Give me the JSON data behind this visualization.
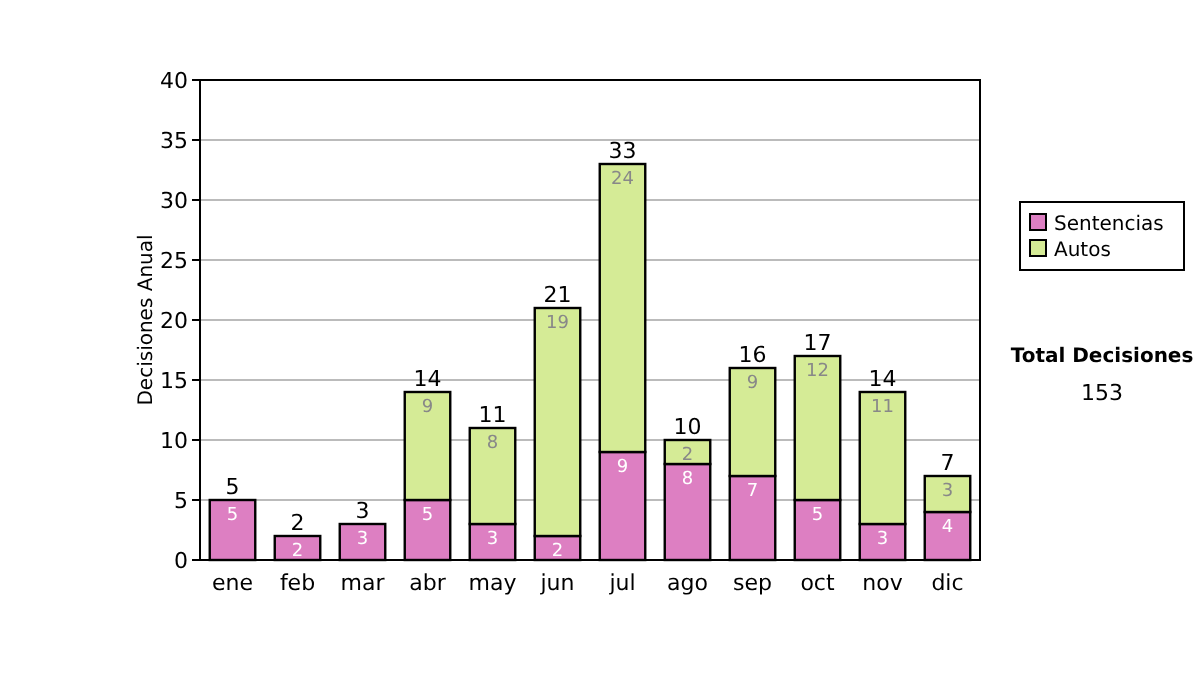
{
  "chart_data": {
    "type": "bar",
    "ylabel": "Decisiones Anual",
    "categories": [
      "ene",
      "feb",
      "mar",
      "abr",
      "may",
      "jun",
      "jul",
      "ago",
      "sep",
      "oct",
      "nov",
      "dic"
    ],
    "series": [
      {
        "name": "Sentencias",
        "color": "#dd7fc2",
        "values": [
          5,
          2,
          3,
          5,
          3,
          2,
          9,
          8,
          7,
          5,
          3,
          4
        ],
        "value_labels": [
          "5",
          "2",
          "3",
          "5",
          "3",
          "2",
          "9",
          "8",
          "7",
          "5",
          "3",
          "4"
        ]
      },
      {
        "name": "Autos",
        "color": "#d5eb96",
        "values": [
          0,
          0,
          0,
          9,
          8,
          19,
          24,
          2,
          9,
          12,
          11,
          3
        ],
        "value_labels": [
          null,
          null,
          null,
          "9",
          "8",
          "19",
          "24",
          "2",
          "9",
          "12",
          "11",
          "3"
        ]
      }
    ],
    "stacked": true,
    "totals": [
      "5",
      "2",
      "3",
      "14",
      "11",
      "21",
      "33",
      "10",
      "16",
      "17",
      "14",
      "7"
    ],
    "ylim": [
      0,
      40
    ],
    "yticks": [
      0,
      5,
      10,
      15,
      20,
      25,
      30,
      35,
      40
    ],
    "grid": "y",
    "legend": "right",
    "annotations": [
      "Total Decisiones",
      "153"
    ]
  }
}
